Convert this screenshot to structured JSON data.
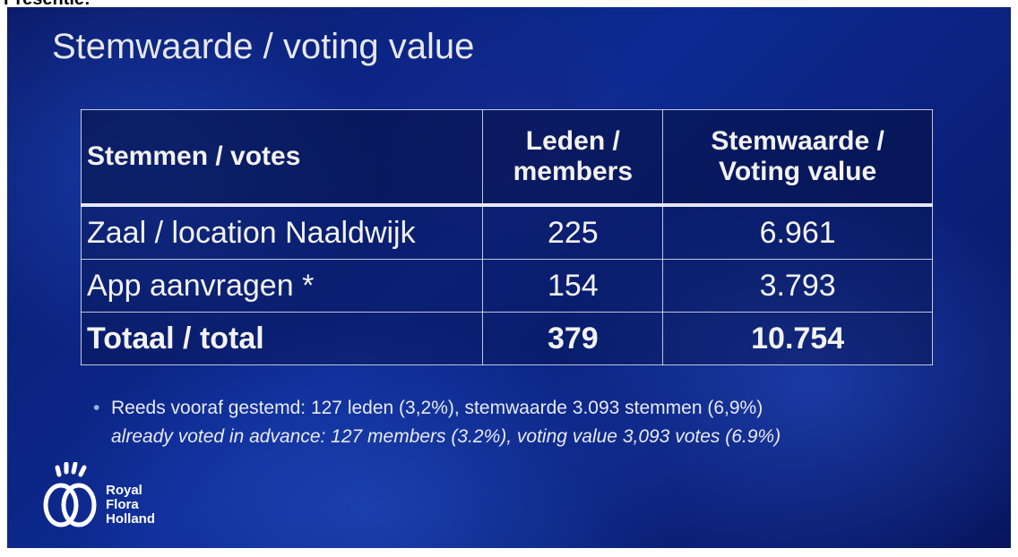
{
  "header_strip": {
    "text": "Presentie:"
  },
  "slide": {
    "title": "Stemwaarde / voting value",
    "table": {
      "columns": [
        "Stemmen / votes",
        "Leden / members",
        "Stemwaarde / Voting value"
      ],
      "rows": [
        [
          "Zaal / location Naaldwijk",
          "225",
          "6.961"
        ],
        [
          "App aanvragen *",
          "154",
          "3.793"
        ],
        [
          "Totaal / total",
          "379",
          "10.754"
        ]
      ]
    },
    "footnotes": [
      "Reeds vooraf gestemd: 127 leden (3,2%), stemwaarde 3.093 stemmen (6,9%)",
      "already voted in advance: 127 members (3.2%), voting value 3,093 votes (6.9%)"
    ],
    "logo": {
      "lines": [
        "Royal",
        "Flora",
        "Holland"
      ]
    }
  }
}
